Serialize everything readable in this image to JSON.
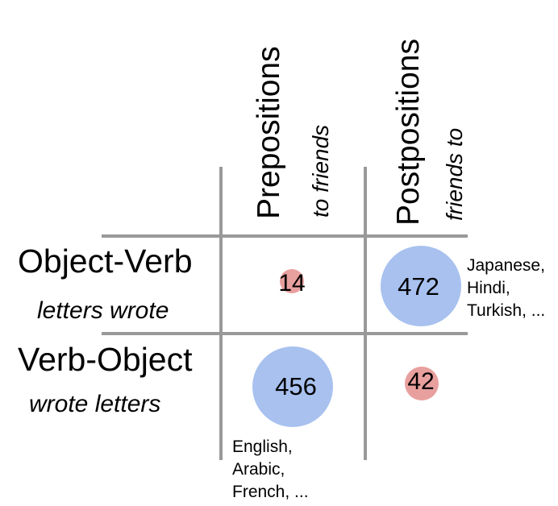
{
  "columns": [
    {
      "title": "Prepositions",
      "example": "to friends"
    },
    {
      "title": "Postpositions",
      "example": "friends to"
    }
  ],
  "rows": [
    {
      "title": "Object-Verb",
      "example": "letters wrote"
    },
    {
      "title": "Verb-Object",
      "example": "wrote letters"
    }
  ],
  "cells": {
    "ov_prep": {
      "count": "14",
      "color": "#e8a09e"
    },
    "ov_post": {
      "count": "472",
      "color": "#a8c1ef",
      "languages": [
        "Japanese,",
        "Hindi,",
        "Turkish, ..."
      ]
    },
    "vo_prep": {
      "count": "456",
      "color": "#a8c1ef",
      "languages": [
        "English,",
        "Arabic,",
        "French, ..."
      ]
    },
    "vo_post": {
      "count": "42",
      "color": "#e8a09e"
    }
  },
  "grid_color": "#999999"
}
